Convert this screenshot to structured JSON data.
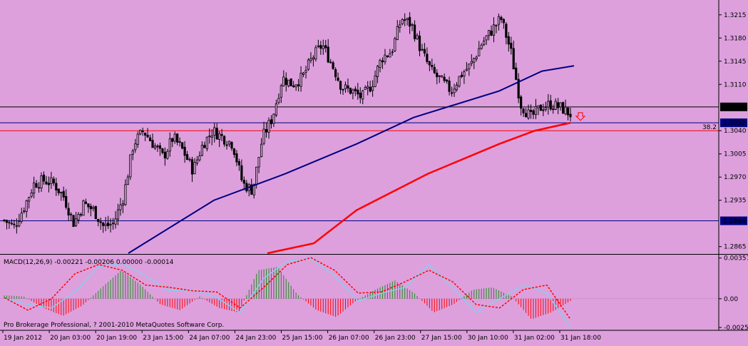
{
  "colors": {
    "background": "#dda0dd",
    "axis": "#000000",
    "candles": "#000000",
    "ma_blue": "#000080",
    "ma_red": "#ff0000",
    "macd_green": "#228b22",
    "macd_red": "#ff0000",
    "signal_line": "#ff0000",
    "macd_line": "#87ceeb",
    "hline_black": "#000000",
    "hline_blue": "#000080",
    "hline_red": "#ff0000",
    "arrow": "#ff0000"
  },
  "chart_data": [
    {
      "type": "candlestick",
      "y_ticks": [
        "1.3215",
        "1.3180",
        "1.3145",
        "1.3110",
        "1.3040",
        "1.3005",
        "1.2970",
        "1.2935",
        "1.2865"
      ],
      "ylim": [
        1.2855,
        1.3232
      ],
      "x_labels": [
        "19 Jan 2012",
        "20 Jan 03:00",
        "20 Jan 19:00",
        "23 Jan 15:00",
        "24 Jan 07:00",
        "24 Jan 23:00",
        "25 Jan 15:00",
        "26 Jan 07:00",
        "26 Jan 23:00",
        "27 Jan 15:00",
        "30 Jan 10:00",
        "31 Jan 02:00",
        "31 Jan 18:00"
      ],
      "price_path": [
        1.2905,
        1.2895,
        1.2925,
        1.296,
        1.2965,
        1.296,
        1.294,
        1.29,
        1.293,
        1.292,
        1.2895,
        1.29,
        1.294,
        1.302,
        1.304,
        1.302,
        1.3,
        1.303,
        1.301,
        1.298,
        1.302,
        1.304,
        1.303,
        1.302,
        1.296,
        1.295,
        1.303,
        1.306,
        1.312,
        1.311,
        1.312,
        1.315,
        1.317,
        1.314,
        1.3105,
        1.31,
        1.309,
        1.311,
        1.315,
        1.316,
        1.321,
        1.32,
        1.316,
        1.313,
        1.3115,
        1.31,
        1.3125,
        1.314,
        1.317,
        1.319,
        1.321,
        1.316,
        1.308,
        1.306,
        1.3075,
        1.308,
        1.3075,
        1.3065
      ],
      "hlines": [
        {
          "value": 1.3076,
          "label": "1.3076",
          "color": "black"
        },
        {
          "value": 1.3052,
          "label": "1.3052",
          "color": "blue"
        },
        {
          "value": 1.304,
          "label": "38.2",
          "color": "red"
        },
        {
          "value": 1.2904,
          "label": "1.2904",
          "color": "blue"
        }
      ],
      "ma_blue": {
        "start": [
          180,
          1.2855
        ],
        "points": [
          [
            180,
            1.2855
          ],
          [
            300,
            1.2935
          ],
          [
            400,
            1.2975
          ],
          [
            500,
            1.302
          ],
          [
            580,
            1.306
          ],
          [
            700,
            1.31
          ],
          [
            760,
            1.313
          ],
          [
            805,
            1.3138
          ]
        ]
      },
      "ma_red": {
        "points": [
          [
            375,
            1.2855
          ],
          [
            440,
            1.287
          ],
          [
            500,
            1.292
          ],
          [
            600,
            1.2975
          ],
          [
            700,
            1.302
          ],
          [
            750,
            1.304
          ],
          [
            800,
            1.3052
          ]
        ]
      },
      "arrow": "down",
      "hline_price_labels": [
        "1.3076",
        "1.3052",
        "1.2904"
      ]
    },
    {
      "type": "macd",
      "title": "MACD(12,26,9) -0.00221 -0.00206 0.00000 -0.00014",
      "y_ticks": [
        "0.00357",
        "0.00",
        "-0.00251"
      ],
      "ylim": [
        -0.0027,
        0.0038
      ],
      "histogram": [
        0.0003,
        0.0002,
        -0.0008,
        -0.0015,
        -0.0006,
        0.001,
        0.0025,
        0.0012,
        -0.0005,
        -0.001,
        0.0002,
        -0.0008,
        -0.0012,
        0.0025,
        0.0028,
        0.0004,
        -0.001,
        -0.0016,
        -0.0002,
        0.0008,
        0.0016,
        0.0005,
        -0.0012,
        -0.0005,
        0.0008,
        0.001,
        0.0002,
        -0.0018,
        -0.0012,
        -0.0002
      ],
      "macd_line": [
        0.0,
        -0.0005,
        -0.0008,
        0.0006,
        0.0028,
        0.0031,
        0.002,
        0.0007,
        0.0008,
        0.0001,
        -0.0012,
        0.0018,
        0.0033,
        0.0035,
        0.002,
        -0.0002,
        0.0005,
        0.001,
        0.003,
        0.001,
        -0.0012,
        0.0,
        0.0012,
        0.0005,
        -0.0025
      ],
      "signal_line": [
        0.0001,
        -0.001,
        0.0,
        0.0022,
        0.003,
        0.0025,
        0.0012,
        0.001,
        0.0007,
        0.0006,
        -0.0008,
        0.001,
        0.003,
        0.0036,
        0.0025,
        0.0005,
        0.0006,
        0.0015,
        0.0025,
        0.0015,
        -0.0005,
        -0.0008,
        0.0008,
        0.0012,
        -0.0018
      ]
    }
  ],
  "copyright": "Pro Brokerage Professional, ? 2001-2010 MetaQuotes Software Corp."
}
